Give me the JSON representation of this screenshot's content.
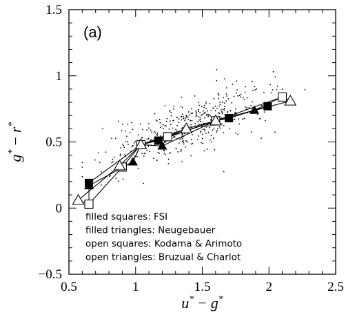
{
  "chart_data": {
    "type": "scatter",
    "panel_label": "(a)",
    "xlabel": {
      "left_var": "u",
      "op": "−",
      "right_var": "g",
      "sup": "*"
    },
    "ylabel": {
      "left_var": "g",
      "op": "−",
      "right_var": "r",
      "sup": "*"
    },
    "xlim": [
      0.5,
      2.5
    ],
    "ylim": [
      -0.5,
      1.5
    ],
    "x_ticks": [
      "0.5",
      "1",
      "1.5",
      "2",
      "2.5"
    ],
    "y_ticks": [
      "−0.5",
      "0",
      "0.5",
      "1",
      "1.5"
    ],
    "grid": false,
    "legend": [
      "filled squares:  FSI",
      "filled triangles: Neugebauer",
      "open squares:  Kodama & Arimoto",
      "open triangles: Bruzual & Charlot"
    ],
    "series": [
      {
        "marker": "filled-square",
        "points": [
          [
            0.65,
            0.19
          ],
          [
            1.04,
            0.48
          ],
          [
            1.17,
            0.51
          ],
          [
            1.6,
            0.66
          ],
          [
            1.7,
            0.68
          ],
          [
            1.99,
            0.77
          ]
        ]
      },
      {
        "marker": "filled-triangle",
        "points": [
          [
            0.65,
            0.17
          ],
          [
            0.98,
            0.35
          ],
          [
            1.04,
            0.48
          ],
          [
            1.2,
            0.47
          ],
          [
            1.6,
            0.66
          ],
          [
            1.89,
            0.74
          ]
        ]
      },
      {
        "marker": "open-square",
        "points": [
          [
            0.65,
            0.03
          ],
          [
            0.9,
            0.31
          ],
          [
            1.04,
            0.48
          ],
          [
            1.24,
            0.54
          ],
          [
            1.6,
            0.66
          ],
          [
            2.1,
            0.84
          ]
        ]
      },
      {
        "marker": "open-triangle",
        "points": [
          [
            0.57,
            0.06
          ],
          [
            0.88,
            0.32
          ],
          [
            1.04,
            0.48
          ],
          [
            1.38,
            0.6
          ],
          [
            1.6,
            0.66
          ],
          [
            2.16,
            0.81
          ]
        ]
      }
    ],
    "connecting_lines": [
      [
        [
          0.65,
          0.19
        ],
        [
          0.65,
          0.17
        ],
        [
          0.65,
          0.03
        ],
        [
          0.57,
          0.06
        ]
      ],
      [
        [
          1.04,
          0.48
        ],
        [
          0.98,
          0.35
        ],
        [
          0.9,
          0.31
        ],
        [
          0.88,
          0.32
        ]
      ],
      [
        [
          1.17,
          0.51
        ],
        [
          1.2,
          0.47
        ],
        [
          1.24,
          0.54
        ],
        [
          1.38,
          0.6
        ]
      ],
      [
        [
          1.6,
          0.66
        ],
        [
          1.6,
          0.66
        ],
        [
          1.6,
          0.66
        ],
        [
          1.6,
          0.66
        ]
      ],
      [
        [
          1.99,
          0.77
        ],
        [
          1.89,
          0.74
        ],
        [
          2.1,
          0.84
        ],
        [
          2.16,
          0.81
        ]
      ]
    ],
    "background_points": {
      "count": 430,
      "distribution": "scattered galaxy colours, concentrated roughly along the model tracks",
      "x_range": [
        0.6,
        2.4
      ],
      "y_range": [
        0.1,
        1.2
      ]
    }
  }
}
